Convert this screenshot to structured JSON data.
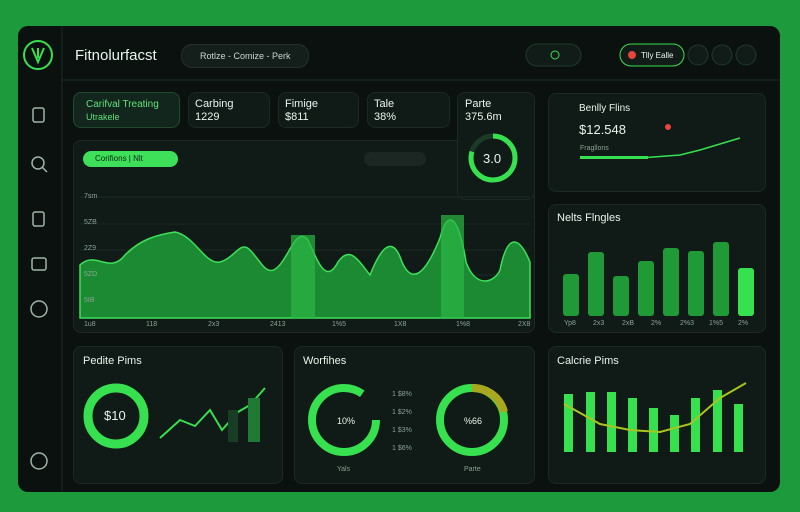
{
  "header": {
    "brand": "Fitnolurfacst",
    "search": "Rotlze - Comize - Perk",
    "button": "Tlly Ealle"
  },
  "stats": [
    {
      "label": "Carifval Treating",
      "value": "Utrakele"
    },
    {
      "label": "Carbing",
      "value": "1229"
    },
    {
      "label": "Fimige",
      "value": "$811"
    },
    {
      "label": "Tale",
      "value": "38%"
    },
    {
      "label": "Parte",
      "value": "375.6m"
    }
  ],
  "gauge": {
    "value": "3.0"
  },
  "main_chart": {
    "button": "Corifions | Nlt",
    "y_labels": [
      "7sm",
      "5ZB",
      "2Z9",
      "5ZD",
      "5IB"
    ],
    "x_labels": [
      "1u8",
      "118",
      "2x3",
      "2413",
      "1%5",
      "1X8",
      "1%8",
      "2X8"
    ]
  },
  "benefit_panel": {
    "title": "Benlly Flins",
    "amount": "$12.548",
    "caption": "Fragllons"
  },
  "bars_panel": {
    "title": "Nelts Flngles",
    "x_labels": [
      "Yp8",
      "2x3",
      "2xB",
      "2%",
      "2%3",
      "1%5",
      "2%"
    ]
  },
  "pedite_panel": {
    "title": "Pedite Pims",
    "amount": "$10"
  },
  "workouts_panel": {
    "title": "Worfihes",
    "left_value": "10%",
    "right_value": "%66",
    "left_caption": "Yals",
    "right_caption": "Parte",
    "legend": [
      "1 $8%",
      "1 $2%",
      "1 $3%",
      "1 $6%"
    ]
  },
  "calorie_panel": {
    "title": "Calcrie Pims"
  }
}
